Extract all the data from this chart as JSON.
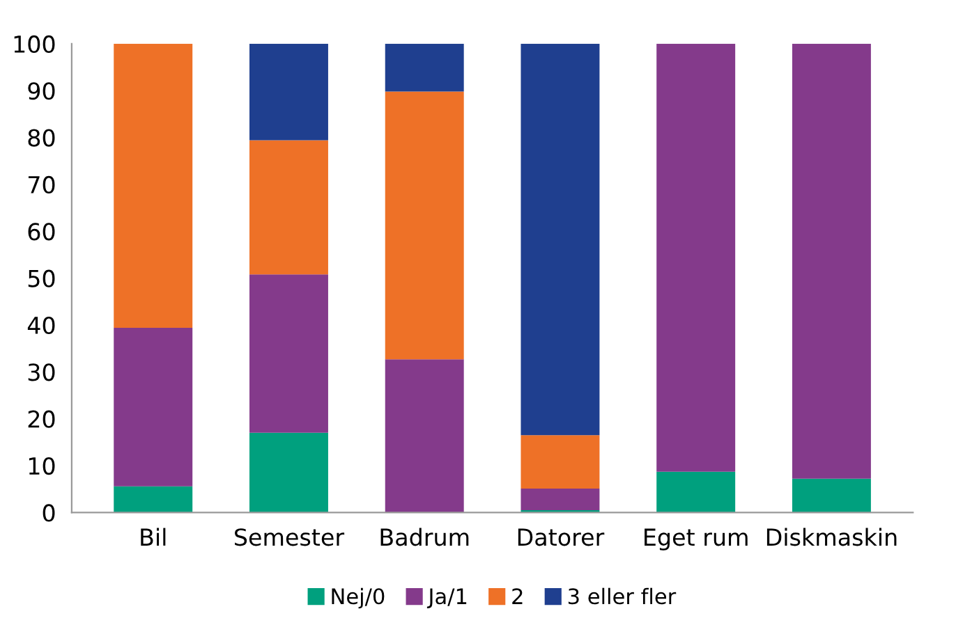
{
  "chart_data": {
    "type": "bar",
    "stacked": true,
    "categories": [
      "Bil",
      "Semester",
      "Badrum",
      "Datorer",
      "Eget rum",
      "Diskmaskin"
    ],
    "series": [
      {
        "name": "Nej/0",
        "color": "#00a07e",
        "values": [
          5.6,
          17.0,
          0,
          0.5,
          8.7,
          7.2
        ]
      },
      {
        "name": "Ja/1",
        "color": "#843a8b",
        "values": [
          33.8,
          33.8,
          32.7,
          4.6,
          91.3,
          92.8
        ]
      },
      {
        "name": "2",
        "color": "#ee7127",
        "values": [
          60.6,
          28.6,
          57.1,
          11.4,
          0,
          0
        ]
      },
      {
        "name": "3 eller fler",
        "color": "#1f3f8f",
        "values": [
          0,
          20.6,
          10.2,
          83.5,
          0,
          0
        ]
      }
    ],
    "ylim": [
      0,
      100
    ],
    "yticks": [
      0,
      10,
      20,
      30,
      40,
      50,
      60,
      70,
      80,
      90,
      100
    ],
    "grid": false,
    "legend": "bottom"
  }
}
